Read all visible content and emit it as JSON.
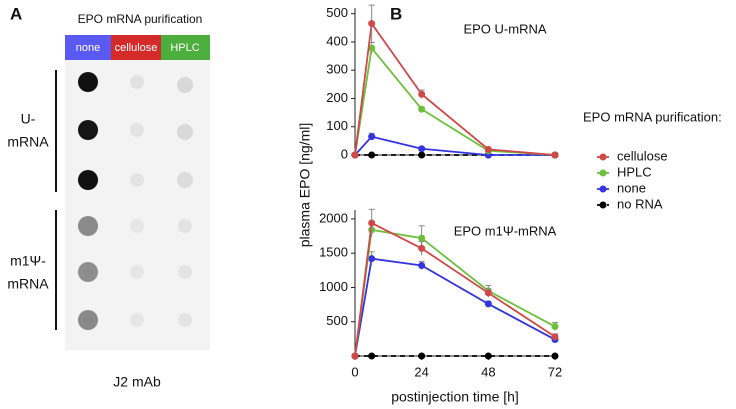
{
  "panel_a": {
    "label": "A",
    "title": "EPO mRNA purification",
    "columns": [
      "none",
      "cellulose",
      "HPLC"
    ],
    "rows": [
      [
        "U-",
        "mRNA"
      ],
      [
        "m1Ψ-",
        "mRNA"
      ]
    ],
    "footer": "J2 mAb"
  },
  "panel_b": {
    "label": "B",
    "ylabel": "plasma EPO [ng/ml]",
    "xlabel": "postinjection time [h]",
    "legend_title": "EPO mRNA purification:"
  },
  "chart_data": [
    {
      "type": "line",
      "annotation": "EPO U-mRNA",
      "x": [
        0,
        6,
        24,
        48,
        72
      ],
      "xlim": [
        0,
        72
      ],
      "ylim": [
        0,
        520
      ],
      "yticks": [
        0,
        100,
        200,
        300,
        400,
        500
      ],
      "series": [
        {
          "name": "cellulose",
          "color": "#d04848",
          "dash": false,
          "values": [
            0,
            465,
            215,
            20,
            0
          ],
          "errors": [
            0,
            65,
            15,
            3,
            0
          ]
        },
        {
          "name": "HPLC",
          "color": "#6cc03a",
          "dash": false,
          "values": [
            0,
            378,
            162,
            15,
            0
          ],
          "errors": [
            0,
            20,
            8,
            3,
            0
          ]
        },
        {
          "name": "none",
          "color": "#3535e0",
          "dash": false,
          "values": [
            0,
            65,
            22,
            0,
            0
          ],
          "errors": [
            0,
            12,
            4,
            2,
            0
          ]
        },
        {
          "name": "no RNA",
          "color": "#000000",
          "dash": true,
          "values": [
            0,
            0,
            0,
            0,
            0
          ],
          "errors": [
            0,
            0,
            0,
            0,
            0
          ]
        }
      ]
    },
    {
      "type": "line",
      "annotation": "EPO m1Ψ-mRNA",
      "x": [
        0,
        6,
        24,
        48,
        72
      ],
      "xlim": [
        0,
        72
      ],
      "xticks": [
        0,
        24,
        48,
        72
      ],
      "ylim": [
        0,
        2130
      ],
      "yticks": [
        500,
        1000,
        1500,
        2000
      ],
      "series": [
        {
          "color": "#d04848",
          "dash": false,
          "values": [
            0,
            1940,
            1570,
            920,
            280
          ],
          "errors": [
            0,
            200,
            100,
            60,
            40
          ]
        },
        {
          "color": "#6cc03a",
          "dash": false,
          "values": [
            0,
            1840,
            1720,
            950,
            430
          ],
          "errors": [
            0,
            80,
            180,
            80,
            60
          ]
        },
        {
          "color": "#3535e0",
          "dash": false,
          "values": [
            0,
            1420,
            1320,
            760,
            240
          ],
          "errors": [
            0,
            100,
            60,
            40,
            30
          ]
        },
        {
          "color": "#000000",
          "dash": true,
          "values": [
            0,
            0,
            0,
            0,
            0
          ],
          "errors": [
            0,
            0,
            0,
            0,
            0
          ]
        }
      ]
    }
  ]
}
